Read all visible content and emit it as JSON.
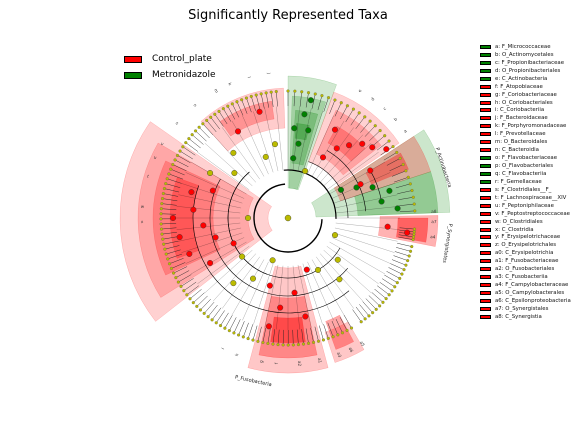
{
  "title": "Significantly Represented Taxa",
  "colors": {
    "Control_plate": "#ff0000",
    "Metronidazole": "#008000",
    "node_other": "#bbbb00"
  },
  "legend": [
    {
      "label": "Control_plate",
      "group": "Control_plate"
    },
    {
      "label": "Metronidazole",
      "group": "Metronidazole"
    }
  ],
  "taxa": [
    {
      "label": "a: F_Micrococcaceae",
      "group": "Metronidazole"
    },
    {
      "label": "b: O_Actinomycetales",
      "group": "Metronidazole"
    },
    {
      "label": "c: F_Propionibacteriaceae",
      "group": "Metronidazole"
    },
    {
      "label": "d: O_Propionibacteriales",
      "group": "Metronidazole"
    },
    {
      "label": "e: C_Actinobacteria",
      "group": "Metronidazole"
    },
    {
      "label": "f: F_Atopobiaceae",
      "group": "Control_plate"
    },
    {
      "label": "g: F_Coriobacteriaceae",
      "group": "Control_plate"
    },
    {
      "label": "h: O_Coriobacteriales",
      "group": "Control_plate"
    },
    {
      "label": "i: C_Coriobacteriia",
      "group": "Control_plate"
    },
    {
      "label": "j: F_Bacteroidaceae",
      "group": "Control_plate"
    },
    {
      "label": "k: F_Porphyromonadaceae",
      "group": "Control_plate"
    },
    {
      "label": "l: F_Prevotellaceae",
      "group": "Control_plate"
    },
    {
      "label": "m: O_Bacteroidales",
      "group": "Control_plate"
    },
    {
      "label": "n: C_Bacteroidia",
      "group": "Control_plate"
    },
    {
      "label": "o: F_Flavobacteriaceae",
      "group": "Metronidazole"
    },
    {
      "label": "p: O_Flavobacteriales",
      "group": "Metronidazole"
    },
    {
      "label": "q: C_Flavobacteriia",
      "group": "Metronidazole"
    },
    {
      "label": "r: F_Gemellaceae",
      "group": "Metronidazole"
    },
    {
      "label": "s: F_Clostridiales__F_",
      "group": "Control_plate"
    },
    {
      "label": "t: F_Lachnospiraceae__XIV",
      "group": "Control_plate"
    },
    {
      "label": "u: F_Peptoniphilaceae",
      "group": "Control_plate"
    },
    {
      "label": "v: F_Peptostreptococcaceae",
      "group": "Control_plate"
    },
    {
      "label": "w: O_Clostridiales",
      "group": "Control_plate"
    },
    {
      "label": "x: C_Clostridia",
      "group": "Control_plate"
    },
    {
      "label": "y: F_Erysipelotrichaceae",
      "group": "Control_plate"
    },
    {
      "label": "z: O_Erysipelotrichales",
      "group": "Control_plate"
    },
    {
      "label": "a0: C_Erysipelotrichia",
      "group": "Control_plate"
    },
    {
      "label": "a1: F_Fusobacteriaceae",
      "group": "Control_plate"
    },
    {
      "label": "a2: O_Fusobacteriales",
      "group": "Control_plate"
    },
    {
      "label": "a3: C_Fusobacteriia",
      "group": "Control_plate"
    },
    {
      "label": "a4: F_Campylobacteraceae",
      "group": "Control_plate"
    },
    {
      "label": "a5: O_Campylobacterales",
      "group": "Control_plate"
    },
    {
      "label": "a6: C_Epsilonproteobacteria",
      "group": "Control_plate"
    },
    {
      "label": "a7: O_Synergistales",
      "group": "Control_plate"
    },
    {
      "label": "a8: C_Synergistia",
      "group": "Control_plate"
    }
  ],
  "phylum_labels": [
    {
      "text": "P_Actinobacteria",
      "group": "Metronidazole"
    },
    {
      "text": "P_Synergistetes",
      "group": "Control_plate"
    },
    {
      "text": "P_Fusobacteria",
      "group": "Control_plate"
    }
  ],
  "clade_letters": [
    "a8",
    "a7",
    "a4",
    "a5",
    "a6",
    "a3",
    "a1",
    "a2",
    "f",
    "g",
    "h",
    "i",
    "e",
    "d",
    "c",
    "b",
    "a",
    "x",
    "w",
    "t",
    "u",
    "v",
    "s",
    "n",
    "m",
    "k",
    "l",
    "j"
  ]
}
